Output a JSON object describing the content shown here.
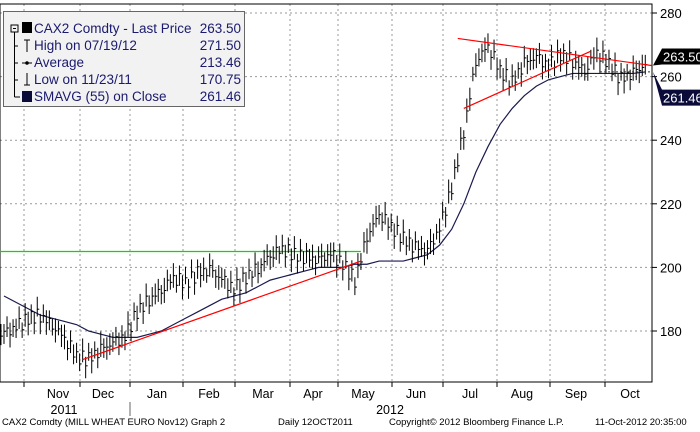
{
  "legend": [
    {
      "label": "CAX2 Comdty - Last Price",
      "value": "263.50"
    },
    {
      "label": "High on 07/19/12",
      "value": "271.50"
    },
    {
      "label": "Average",
      "value": "213.46"
    },
    {
      "label": "Low on 11/23/11",
      "value": "170.75"
    },
    {
      "label": "SMAVG (55) on Close",
      "value": "261.46"
    }
  ],
  "footer": {
    "left": "CAX2 Comdty (MILL WHEAT EURO  Nov12) Graph 2",
    "mid": "Daily 12OCT2011",
    "copy": "Copyright© 2012 Bloomberg Finance L.P.",
    "right": "11-Oct-2012 20:35:00"
  },
  "colors": {
    "price": "#000000",
    "sma": "#1a1a50",
    "trend": "#ff0000",
    "support": "#00dd00"
  },
  "chart_data": {
    "type": "line",
    "title": "CAX2 Comdty - Last Price",
    "ylim": [
      165,
      282
    ],
    "yticks": [
      180,
      200,
      220,
      240,
      260,
      280
    ],
    "months": [
      "Nov",
      "Dec",
      "Jan",
      "Feb",
      "Mar",
      "Apr",
      "May",
      "Jun",
      "Jul",
      "Aug",
      "Sep",
      "Oct"
    ],
    "years": [
      "2011",
      "2012"
    ],
    "last_price": "263.50",
    "sma_last": "261.46",
    "series": [
      {
        "name": "Last Price (weekly approx)",
        "values": [
          179,
          181,
          184,
          185,
          182,
          178,
          172,
          171,
          174,
          176,
          178,
          186,
          190,
          193,
          197,
          195,
          198,
          199,
          196,
          193,
          197,
          200,
          204,
          206,
          204,
          203,
          202,
          204,
          201,
          196,
          210,
          217,
          213,
          209,
          206,
          205,
          212,
          225,
          243,
          265,
          270,
          262,
          258,
          264,
          266,
          263,
          267,
          265,
          262,
          268,
          264,
          259,
          261,
          263.5
        ]
      },
      {
        "name": "SMAVG (55) on Close",
        "values": [
          191,
          189,
          187,
          185,
          184,
          183,
          182,
          180,
          179,
          178,
          178,
          178,
          179,
          180,
          182,
          184,
          186,
          188,
          190,
          191,
          192,
          194,
          196,
          197,
          198,
          199,
          200,
          200,
          200,
          201,
          201,
          202,
          202,
          202,
          203,
          204,
          207,
          212,
          220,
          230,
          238,
          245,
          250,
          254,
          257,
          259,
          260,
          261,
          261,
          261,
          261,
          261,
          261,
          261.46
        ]
      }
    ],
    "annotations": {
      "support_level": 205,
      "trendlines": [
        [
          [
            6.5,
            171
          ],
          [
            29.5,
            202
          ]
        ],
        [
          [
            37.5,
            272
          ],
          [
            53.5,
            263.5
          ]
        ],
        [
          [
            38,
            250
          ],
          [
            48.5,
            268
          ]
        ]
      ]
    }
  }
}
